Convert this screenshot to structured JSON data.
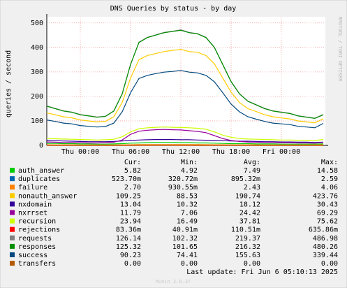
{
  "chart_data": {
    "type": "line",
    "title": "DNS Queries by status - by day",
    "y_label": "queries / second",
    "side_text": "RRDTOOL / TOBI OETIKER",
    "footer": "Munin 2.0.37",
    "last_update": "Last update: Fri Jun  6 05:10:13 2025",
    "legend_columns": [
      "Cur:",
      "Min:",
      "Avg:",
      "Max:"
    ],
    "grid": true,
    "x": [
      -4,
      -3,
      -2,
      -1,
      0,
      1,
      2,
      3,
      4,
      5,
      6,
      7,
      8,
      9,
      10,
      11,
      12,
      13,
      14,
      15,
      16,
      17,
      18,
      19,
      20,
      21,
      22,
      23,
      24,
      25,
      26,
      27,
      28,
      29
    ],
    "xlim": [
      -4,
      29.25
    ],
    "xticks": [
      {
        "value": 0,
        "label": "Thu 00:00"
      },
      {
        "value": 6,
        "label": "Thu 06:00"
      },
      {
        "value": 12,
        "label": "Thu 12:00"
      },
      {
        "value": 18,
        "label": "Thu 18:00"
      },
      {
        "value": 24,
        "label": "Fri 00:00"
      }
    ],
    "ylim": [
      0,
      525
    ],
    "yticks": [
      0,
      100,
      200,
      300,
      400,
      500
    ],
    "series": [
      {
        "name": "auth_answer",
        "color": "#00cc00",
        "stats": [
          "5.82",
          "4.92",
          "7.49",
          "14.58"
        ],
        "values": [
          8,
          8,
          7,
          7,
          6,
          6,
          5,
          5,
          6,
          7,
          9,
          10,
          11,
          12,
          12,
          12,
          11,
          11,
          10,
          10,
          9,
          8,
          7,
          7,
          7,
          6,
          6,
          6,
          5,
          5,
          5,
          5,
          5,
          6
        ]
      },
      {
        "name": "duplicates",
        "color": "#0066b3",
        "stats": [
          "523.70m",
          "320.72m",
          "895.32m",
          "2.59"
        ],
        "values": [
          0.8,
          0.7,
          0.7,
          0.6,
          0.6,
          0.5,
          0.5,
          0.5,
          0.6,
          0.8,
          1.1,
          1.3,
          1.4,
          1.5,
          1.6,
          1.5,
          1.4,
          1.3,
          1.2,
          1.1,
          1,
          0.9,
          0.8,
          0.7,
          0.7,
          0.6,
          0.6,
          0.5,
          0.5,
          0.5,
          0.5,
          0.4,
          0.4,
          0.5
        ]
      },
      {
        "name": "failure",
        "color": "#ff8000",
        "stats": [
          "2.70",
          "930.55m",
          "2.43",
          "4.06"
        ],
        "values": [
          2.5,
          2.4,
          2.3,
          2.2,
          2.1,
          2,
          2,
          2,
          2.1,
          2.3,
          2.7,
          3,
          3.2,
          3.3,
          3.4,
          3.3,
          3.2,
          3.1,
          3,
          2.9,
          2.7,
          2.5,
          2.4,
          2.3,
          2.2,
          2.2,
          2.1,
          2.1,
          2,
          2,
          2,
          2,
          2,
          2.7
        ]
      },
      {
        "name": "nonauth_answer",
        "color": "#ffcc00",
        "stats": [
          "109.25",
          "88.53",
          "190.74",
          "423.76"
        ],
        "values": [
          133,
          125,
          117,
          112,
          104,
          100,
          96,
          98,
          117,
          175,
          275,
          350,
          367,
          375,
          383,
          388,
          392,
          383,
          380,
          367,
          333,
          275,
          217,
          175,
          150,
          138,
          125,
          117,
          112,
          108,
          100,
          96,
          92,
          109
        ]
      },
      {
        "name": "nxdomain",
        "color": "#330099",
        "stats": [
          "13.04",
          "10.32",
          "18.12",
          "30.43"
        ],
        "values": [
          20,
          19,
          18,
          17,
          16,
          15,
          15,
          15,
          16,
          18,
          20,
          22,
          23,
          24,
          24,
          24,
          23,
          23,
          22,
          21,
          20,
          19,
          18,
          17,
          17,
          16,
          15,
          15,
          14,
          14,
          13,
          13,
          12,
          13
        ]
      },
      {
        "name": "nxrrset",
        "color": "#990099",
        "stats": [
          "11.79",
          "7.06",
          "24.42",
          "69.29"
        ],
        "values": [
          14,
          13,
          12,
          12,
          11,
          10,
          10,
          11,
          13,
          22,
          45,
          58,
          62,
          64,
          65,
          64,
          63,
          60,
          57,
          52,
          40,
          28,
          20,
          16,
          14,
          13,
          12,
          12,
          11,
          11,
          10,
          10,
          9,
          12
        ]
      },
      {
        "name": "recursion",
        "color": "#ccff00",
        "stats": [
          "23.94",
          "16.49",
          "37.81",
          "75.62"
        ],
        "values": [
          28,
          27,
          26,
          25,
          24,
          23,
          22,
          23,
          25,
          35,
          55,
          68,
          72,
          74,
          75,
          74,
          73,
          72,
          70,
          66,
          55,
          42,
          33,
          28,
          26,
          25,
          24,
          23,
          22,
          22,
          21,
          21,
          20,
          24
        ]
      },
      {
        "name": "rejections",
        "color": "#ff0000",
        "stats": [
          "83.36m",
          "40.91m",
          "110.51m",
          "635.86m"
        ],
        "values": [
          0.1,
          0.1,
          0.1,
          0.09,
          0.08,
          0.08,
          0.07,
          0.07,
          0.08,
          0.1,
          0.13,
          0.15,
          0.16,
          0.17,
          0.18,
          0.17,
          0.16,
          0.15,
          0.14,
          0.13,
          0.12,
          0.11,
          0.1,
          0.1,
          0.09,
          0.09,
          0.08,
          0.08,
          0.08,
          0.07,
          0.07,
          0.07,
          0.07,
          0.08
        ]
      },
      {
        "name": "requests",
        "color": "#808080",
        "stats": [
          "126.14",
          "102.32",
          "219.37",
          "486.98"
        ],
        "values": [
          161,
          151,
          141,
          136,
          126,
          121,
          116,
          119,
          141,
          211,
          331,
          421,
          441,
          451,
          461,
          466,
          472,
          461,
          456,
          441,
          401,
          331,
          261,
          211,
          181,
          166,
          151,
          141,
          136,
          131,
          121,
          116,
          111,
          126
        ]
      },
      {
        "name": "responses",
        "color": "#008f00",
        "stats": [
          "125.32",
          "101.65",
          "216.32",
          "480.26"
        ],
        "values": [
          160,
          150,
          140,
          135,
          125,
          120,
          115,
          118,
          140,
          210,
          330,
          420,
          440,
          450,
          460,
          465,
          470,
          460,
          455,
          440,
          400,
          330,
          260,
          210,
          180,
          165,
          150,
          140,
          135,
          130,
          120,
          115,
          110,
          125
        ]
      },
      {
        "name": "success",
        "color": "#00487d",
        "stats": [
          "90.23",
          "74.41",
          "155.63",
          "339.44"
        ],
        "values": [
          104,
          98,
          91,
          88,
          81,
          78,
          75,
          77,
          91,
          137,
          215,
          273,
          286,
          293,
          299,
          302,
          306,
          299,
          296,
          286,
          260,
          215,
          169,
          137,
          117,
          107,
          98,
          91,
          88,
          85,
          78,
          75,
          72,
          90
        ]
      },
      {
        "name": "transfers",
        "color": "#b35a00",
        "stats": [
          "0.00",
          "0.00",
          "0.00",
          "0.00"
        ],
        "values": [
          0,
          0,
          0,
          0,
          0,
          0,
          0,
          0,
          0,
          0,
          0,
          0,
          0,
          0,
          0,
          0,
          0,
          0,
          0,
          0,
          0,
          0,
          0,
          0,
          0,
          0,
          0,
          0,
          0,
          0,
          0,
          0,
          0,
          0
        ]
      }
    ]
  }
}
